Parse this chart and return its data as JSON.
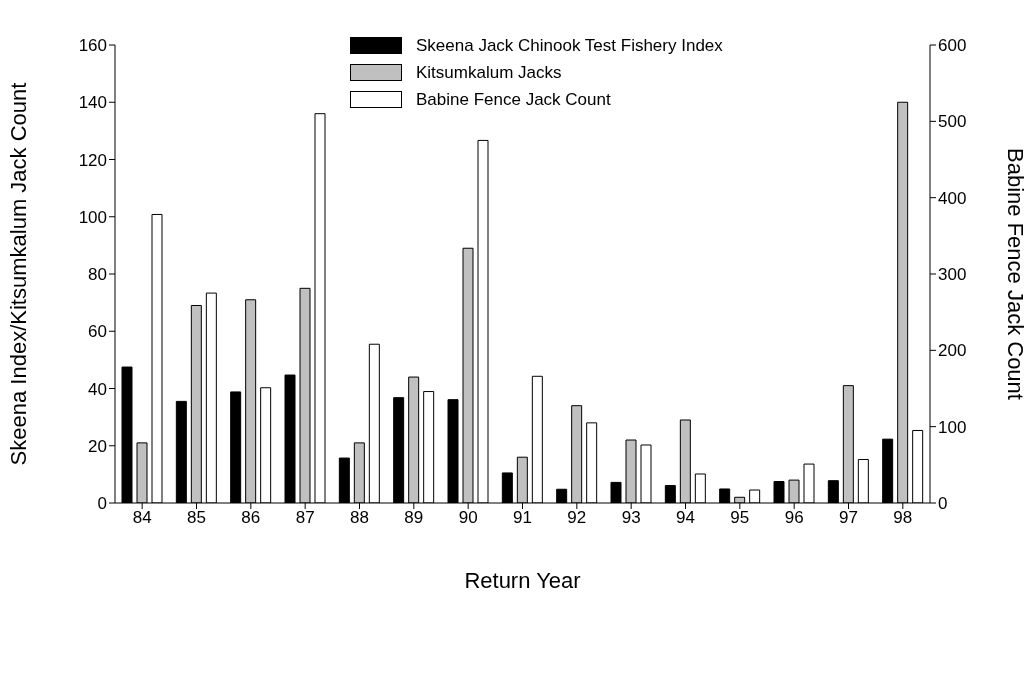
{
  "chart_data": {
    "type": "bar",
    "xlabel": "Return Year",
    "ylabel": "Skeena Index/Kitsumkalum Jack Count",
    "y2label": "Babine Fence Jack Count",
    "categories": [
      "84",
      "85",
      "86",
      "87",
      "88",
      "89",
      "90",
      "91",
      "92",
      "93",
      "94",
      "95",
      "96",
      "97",
      "98"
    ],
    "series": [
      {
        "name": "Skeena Jack Chinook Test Fishery Index",
        "color": "#000000",
        "values": [
          47.5,
          35.5,
          38.8,
          44.7,
          15.7,
          36.8,
          36.1,
          10.5,
          4.8,
          7.2,
          6.1,
          4.9,
          7.5,
          7.8,
          22.3
        ]
      },
      {
        "name": "Kitsumkalum Jacks",
        "color": "#c0c0c0",
        "values": [
          21,
          69,
          71,
          75,
          21,
          44,
          89,
          16,
          34,
          22,
          29,
          2,
          8,
          41,
          140
        ]
      },
      {
        "name": "Babine Fence Jack Count",
        "color": "#ffffff",
        "axis": "y2",
        "values": [
          378,
          275,
          151,
          510,
          208,
          146,
          475,
          166,
          105,
          76,
          38,
          17,
          51,
          57,
          95
        ]
      }
    ],
    "ylim": [
      0,
      160
    ],
    "yticks": [
      0,
      20,
      40,
      60,
      80,
      100,
      120,
      140,
      160
    ],
    "y2lim": [
      0,
      600
    ],
    "y2ticks": [
      0,
      100,
      200,
      300,
      400,
      500,
      600
    ],
    "grid": false,
    "legend": "top"
  }
}
